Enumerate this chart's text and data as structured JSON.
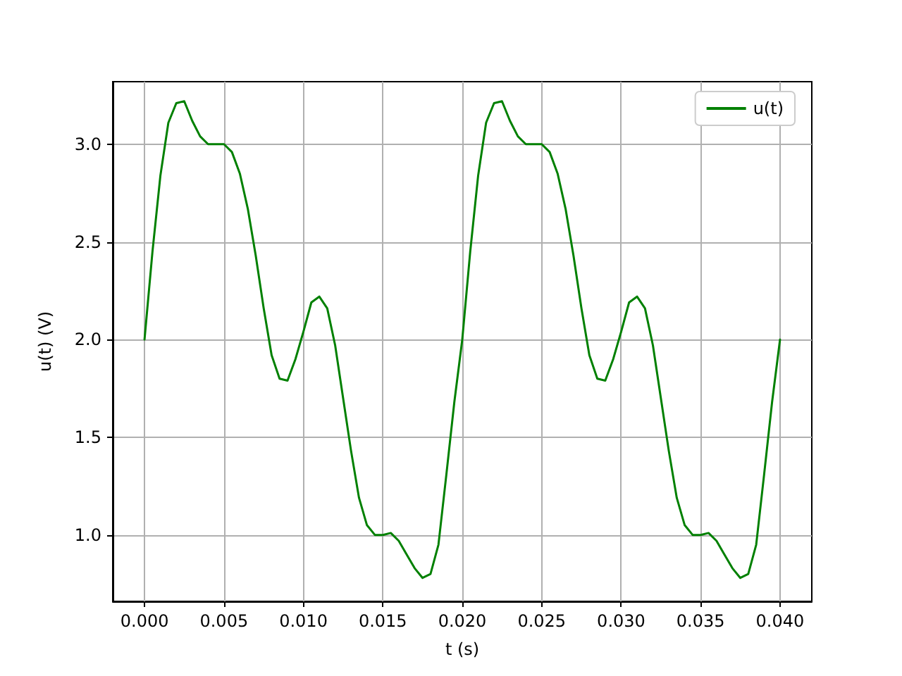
{
  "chart_data": {
    "type": "line",
    "xlabel": "t (s)",
    "ylabel": "u(t) (V)",
    "x": [
      0,
      0.0005,
      0.001,
      0.0015,
      0.002,
      0.0025,
      0.003,
      0.0035,
      0.004,
      0.0045,
      0.005,
      0.0055,
      0.006,
      0.0065,
      0.007,
      0.0075,
      0.008,
      0.0085,
      0.009,
      0.0095,
      0.01,
      0.0105,
      0.011,
      0.0115,
      0.012,
      0.0125,
      0.013,
      0.0135,
      0.014,
      0.0145,
      0.015,
      0.0155,
      0.016,
      0.0165,
      0.017,
      0.0175,
      0.018,
      0.0185,
      0.019,
      0.0195,
      0.02,
      0.0205,
      0.021,
      0.0215,
      0.022,
      0.0225,
      0.023,
      0.0235,
      0.024,
      0.0245,
      0.025,
      0.0255,
      0.026,
      0.0265,
      0.027,
      0.0275,
      0.028,
      0.0285,
      0.029,
      0.0295,
      0.03,
      0.0305,
      0.031,
      0.0315,
      0.032,
      0.0325,
      0.033,
      0.0335,
      0.034,
      0.0345,
      0.035,
      0.0355,
      0.036,
      0.0365,
      0.037,
      0.0375,
      0.038,
      0.0385,
      0.039,
      0.0395,
      0.04
    ],
    "series": [
      {
        "name": "u(t)",
        "color": "#008000",
        "values": [
          2.0,
          2.45,
          2.84,
          3.11,
          3.21,
          3.22,
          3.12,
          3.04,
          3.0,
          3.0,
          3.0,
          2.96,
          2.85,
          2.67,
          2.43,
          2.16,
          1.92,
          1.8,
          1.79,
          1.9,
          2.04,
          2.19,
          2.22,
          2.16,
          1.97,
          1.7,
          1.43,
          1.19,
          1.05,
          1.0,
          1.0,
          1.01,
          0.97,
          0.9,
          0.83,
          0.78,
          0.8,
          0.95,
          1.31,
          1.68,
          2.0,
          2.45,
          2.84,
          3.11,
          3.21,
          3.22,
          3.12,
          3.04,
          3.0,
          3.0,
          3.0,
          2.96,
          2.85,
          2.67,
          2.43,
          2.16,
          1.92,
          1.8,
          1.79,
          1.9,
          2.04,
          2.19,
          2.22,
          2.16,
          1.97,
          1.7,
          1.43,
          1.19,
          1.05,
          1.0,
          1.0,
          1.01,
          0.97,
          0.9,
          0.83,
          0.78,
          0.8,
          0.95,
          1.31,
          1.68,
          2.0
        ]
      }
    ],
    "xlim": [
      -0.002,
      0.042
    ],
    "xticks": [
      {
        "value": 0,
        "label": "0.000"
      },
      {
        "value": 0.005,
        "label": "0.005"
      },
      {
        "value": 0.01,
        "label": "0.010"
      },
      {
        "value": 0.015,
        "label": "0.015"
      },
      {
        "value": 0.02,
        "label": "0.020"
      },
      {
        "value": 0.025,
        "label": "0.025"
      },
      {
        "value": 0.03,
        "label": "0.030"
      },
      {
        "value": 0.035,
        "label": "0.035"
      },
      {
        "value": 0.04,
        "label": "0.040"
      }
    ],
    "ylim": [
      0.66,
      3.32
    ],
    "yticks": [
      {
        "value": 1,
        "label": "1.0"
      },
      {
        "value": 1.5,
        "label": "1.5"
      },
      {
        "value": 2,
        "label": "2.0"
      },
      {
        "value": 2.5,
        "label": "2.5"
      },
      {
        "value": 3,
        "label": "3.0"
      }
    ],
    "grid": true,
    "legend": "top right",
    "marker": "none",
    "line_style": "solid"
  }
}
